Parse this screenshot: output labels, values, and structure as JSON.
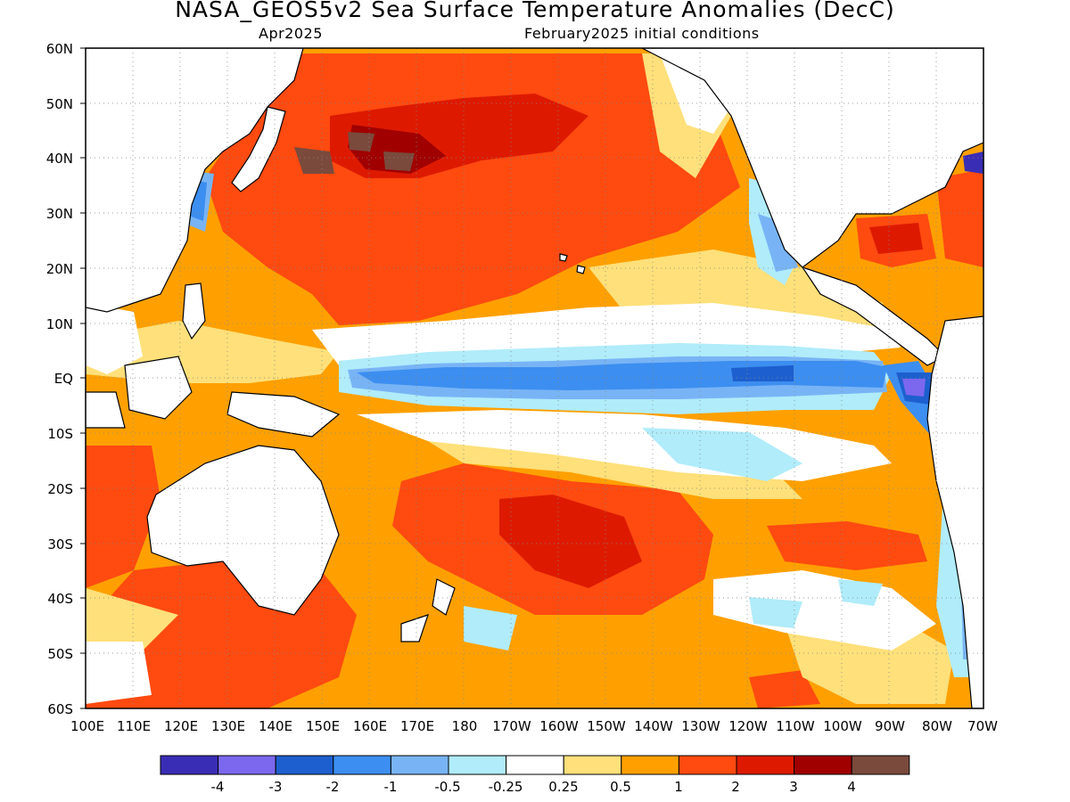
{
  "title": "NASA_GEOS5v2 Sea Surface Temperature Anomalies (DecC)",
  "subtitle_left": "Apr2025",
  "subtitle_right": "February2025 initial conditions",
  "map": {
    "lat_ticks": [
      "60N",
      "50N",
      "40N",
      "30N",
      "20N",
      "10N",
      "EQ",
      "10S",
      "20S",
      "30S",
      "40S",
      "50S",
      "60S"
    ],
    "lon_ticks": [
      "100E",
      "110E",
      "120E",
      "130E",
      "140E",
      "150E",
      "160E",
      "170E",
      "180",
      "170W",
      "160W",
      "150W",
      "140W",
      "130W",
      "120W",
      "110W",
      "100W",
      "90W",
      "80W",
      "70W"
    ]
  },
  "colorbar": {
    "colors": [
      "#3a2db5",
      "#7b68ee",
      "#1d5fce",
      "#3c8ef0",
      "#78b4f5",
      "#b0ecfa",
      "#ffffff",
      "#ffe07a",
      "#ffa000",
      "#ff4a10",
      "#dd1a00",
      "#a00000",
      "#7a4a3c"
    ],
    "labels": [
      "-4",
      "-3",
      "-2",
      "-1",
      "-0.5",
      "-0.25",
      "0.25",
      "0.5",
      "1",
      "2",
      "3",
      "4"
    ]
  },
  "palette": {
    "white": "#ffffff",
    "lightyellow": "#ffe07a",
    "orange": "#ffa000",
    "redorange": "#ff4a10",
    "red": "#dd1a00",
    "darkred": "#a00000",
    "brown": "#7a4a3c",
    "lightcyan": "#b0ecfa",
    "lightblue": "#78b4f5",
    "blue": "#3c8ef0",
    "darkblue": "#1d5fce",
    "purple": "#7b68ee",
    "deeppurple": "#3a2db5",
    "land": "#ffffff",
    "coast": "#000000"
  }
}
